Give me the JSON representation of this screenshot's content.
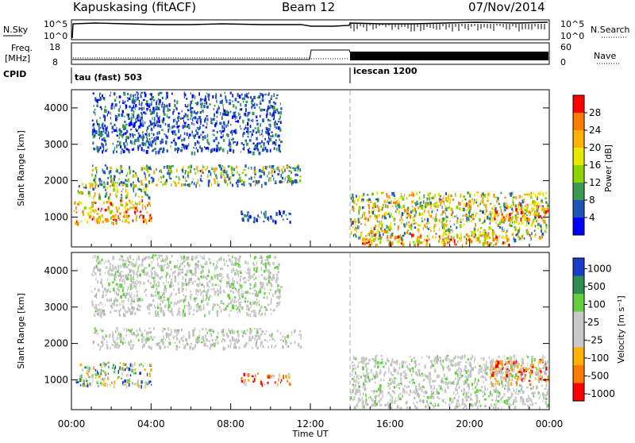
{
  "header": {
    "station": "Kapuskasing (fitACF)",
    "beam": "Beam 12",
    "date": "07/Nov/2014"
  },
  "strip_nsky": {
    "left_label": "N.Sky",
    "left_ticks": [
      "10^5",
      "10^0"
    ],
    "right_ticks": [
      "10^5",
      "10^0"
    ],
    "right_label": "N.Search"
  },
  "strip_freq": {
    "left_label_1": "Freq.",
    "left_label_2": "[MHz]",
    "left_ticks": [
      "18",
      "8"
    ],
    "right_ticks": [
      "60",
      "0"
    ],
    "right_label": "Nave"
  },
  "cpid": {
    "label": "CPID",
    "mode1": "tau (fast) 503",
    "mode2": "icescan 1200"
  },
  "chart_data": [
    {
      "type": "heatmap",
      "name": "power",
      "ylabel": "Slant Range [km]",
      "xlabel": "Time UT",
      "x_ticks": [
        "00:00",
        "04:00",
        "08:00",
        "12:00",
        "16:00",
        "20:00",
        "00:00"
      ],
      "xlim_hours": [
        0,
        24
      ],
      "y_ticks": [
        1000,
        2000,
        3000,
        4000
      ],
      "ylim": [
        180,
        4500
      ],
      "colorbar": {
        "label": "Power [dB]",
        "ticks": [
          "28",
          "24",
          "20",
          "16",
          "12",
          "8",
          "4"
        ],
        "colors": [
          "#ff0000",
          "#ff7a00",
          "#ffb000",
          "#e8e800",
          "#8fd400",
          "#3a9a52",
          "#2055b8",
          "#0000ff"
        ]
      },
      "features": [
        {
          "t": [
            0.1,
            4.0
          ],
          "r": [
            850,
            1500
          ],
          "level": "high"
        },
        {
          "t": [
            0.3,
            4.0
          ],
          "r": [
            1550,
            1950
          ],
          "level": "mid"
        },
        {
          "t": [
            1.0,
            11.5
          ],
          "r": [
            1900,
            2450
          ],
          "level": "mid-low"
        },
        {
          "t": [
            1.0,
            10.5
          ],
          "r": [
            2800,
            4450
          ],
          "level": "low"
        },
        {
          "t": [
            8.5,
            11.0
          ],
          "r": [
            900,
            1200
          ],
          "level": "low"
        },
        {
          "t": [
            14.0,
            23.9
          ],
          "r": [
            400,
            1700
          ],
          "level": "mid"
        },
        {
          "t": [
            14.5,
            22.0
          ],
          "r": [
            250,
            550
          ],
          "level": "high"
        },
        {
          "t": [
            21.0,
            23.9
          ],
          "r": [
            900,
            1400
          ],
          "level": "high"
        }
      ]
    },
    {
      "type": "heatmap",
      "name": "velocity",
      "ylabel": "Slant Range [km]",
      "xlabel": "Time UT",
      "x_ticks": [
        "00:00",
        "04:00",
        "08:00",
        "12:00",
        "16:00",
        "20:00",
        "00:00"
      ],
      "xlim_hours": [
        0,
        24
      ],
      "y_ticks": [
        1000,
        2000,
        3000,
        4000
      ],
      "ylim": [
        180,
        4500
      ],
      "colorbar": {
        "label": "Velocity [m s⁻¹]",
        "ticks": [
          "1000",
          "500",
          "100",
          "25",
          "-25",
          "-100",
          "-500",
          "-1000"
        ],
        "colors": [
          "#1a3cc8",
          "#2e8c55",
          "#64d040",
          "#c8c8c8",
          "#c8c8c8",
          "#ffb000",
          "#ff7a00",
          "#ff0000"
        ]
      },
      "features": [
        {
          "t": [
            0.1,
            4.0
          ],
          "r": [
            850,
            1500
          ],
          "level": "green"
        },
        {
          "t": [
            1.0,
            11.5
          ],
          "r": [
            1900,
            2450
          ],
          "level": "grey"
        },
        {
          "t": [
            1.0,
            10.5
          ],
          "r": [
            2800,
            4450
          ],
          "level": "grey"
        },
        {
          "t": [
            8.5,
            11.0
          ],
          "r": [
            900,
            1200
          ],
          "level": "orange"
        },
        {
          "t": [
            14.0,
            23.9
          ],
          "r": [
            250,
            1700
          ],
          "level": "grey"
        },
        {
          "t": [
            21.0,
            23.9
          ],
          "r": [
            900,
            1600
          ],
          "level": "orange"
        }
      ]
    }
  ]
}
